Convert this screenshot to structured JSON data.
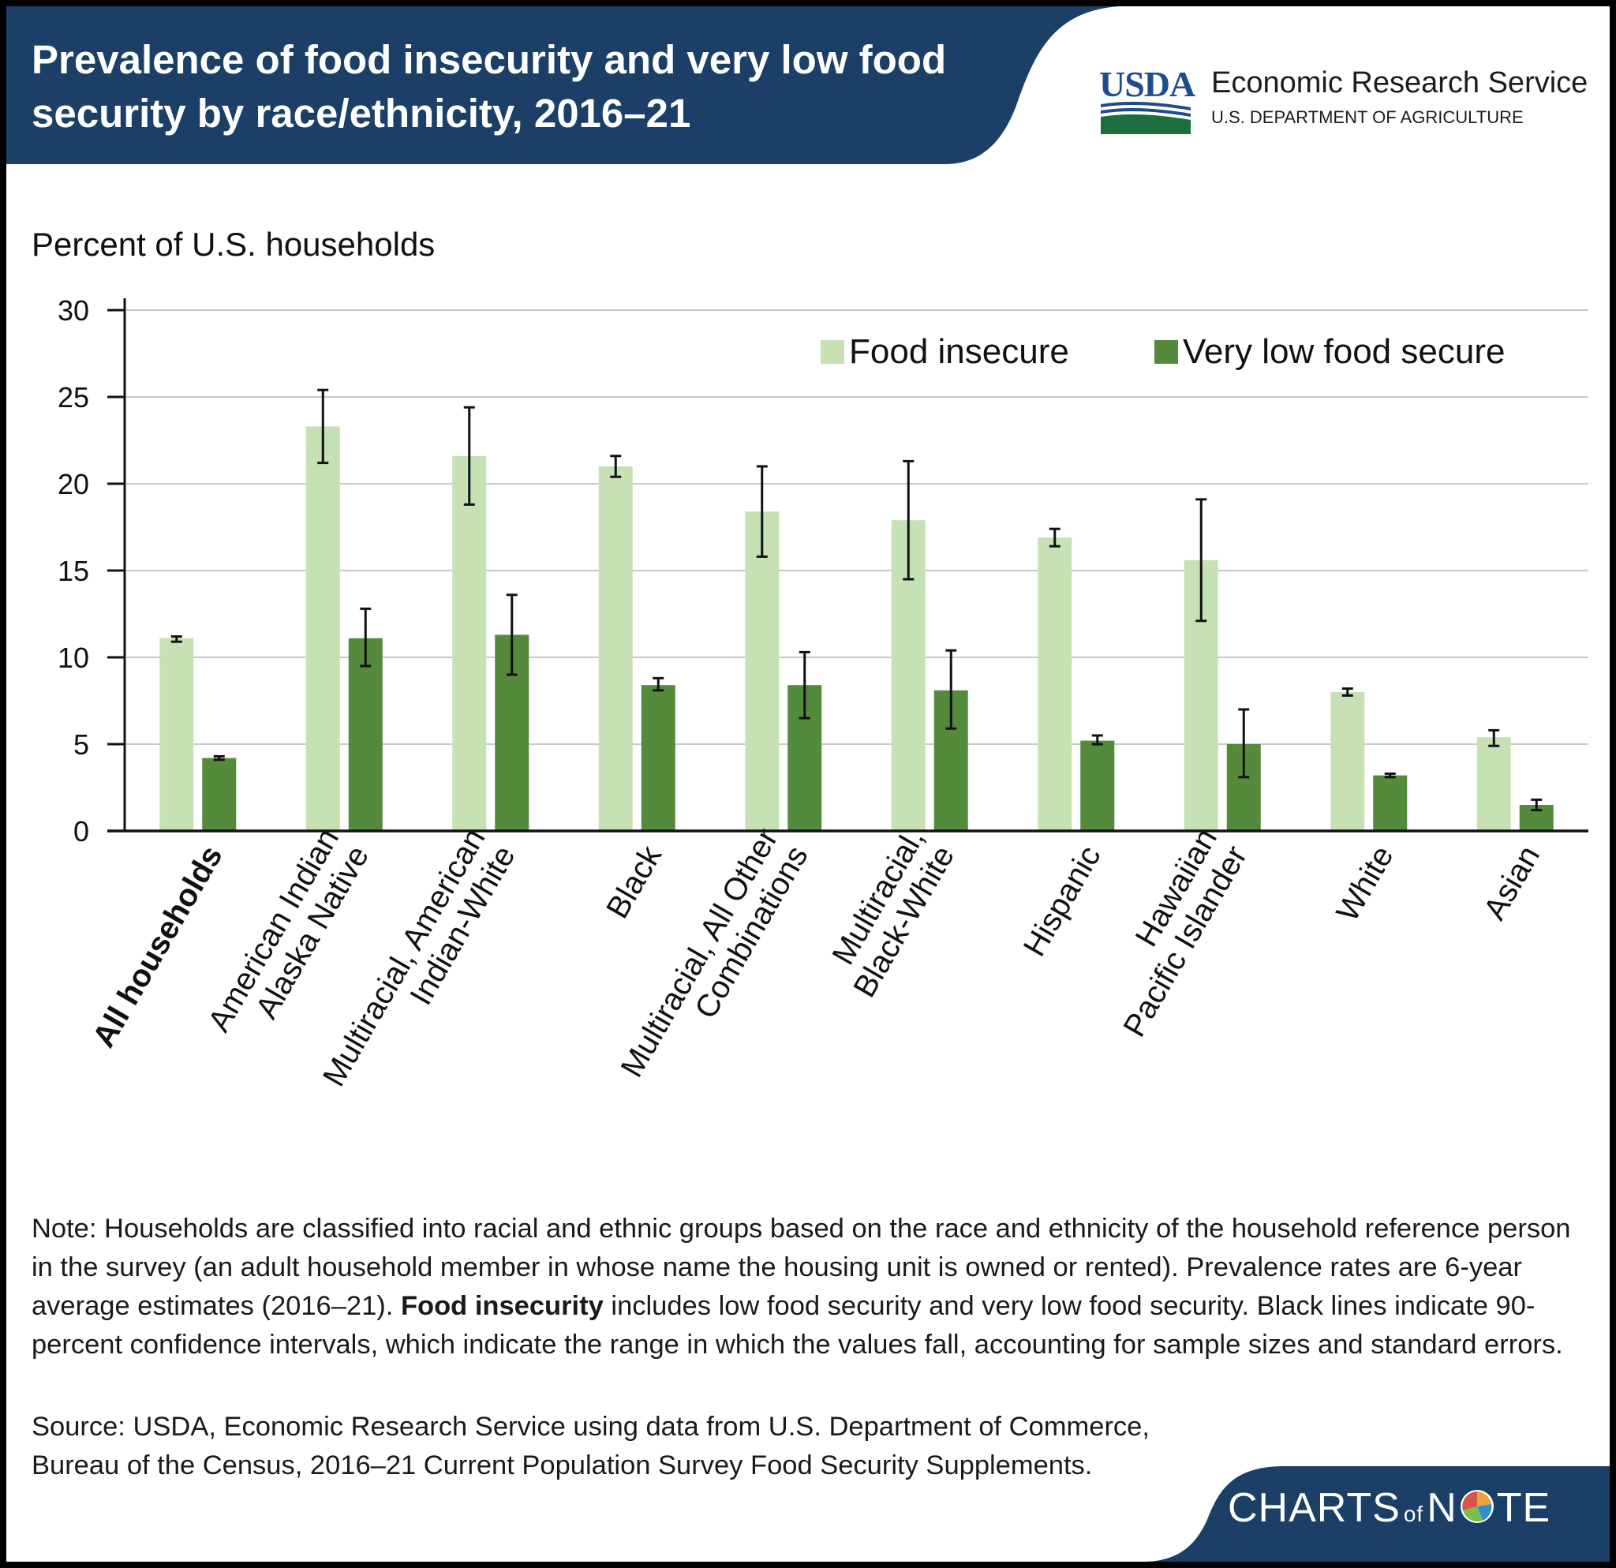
{
  "header": {
    "title": "Prevalence of food insecurity and very low food security by race/ethnicity, 2016–21",
    "logo_usda": "USDA",
    "logo_agency": "Economic Research Service",
    "logo_department": "U.S. DEPARTMENT OF AGRICULTURE"
  },
  "colors": {
    "header_bg": "#1b3f66",
    "food_insecure": "#c6e2b5",
    "very_low": "#548a3c",
    "gridline": "#c8c8c8",
    "usda_blue": "#1e4d8c",
    "usda_green": "#1d6e3f"
  },
  "chart_data": {
    "type": "bar",
    "ylabel": "Percent of U.S. households",
    "ylim": [
      0,
      30
    ],
    "yticks": [
      "0",
      "5",
      "10",
      "15",
      "20",
      "25",
      "30"
    ],
    "categories": [
      "All households",
      "American Indian Alaska Native",
      "Multiracial, American Indian-White",
      "Black",
      "Multiracial, All Other Combinations",
      "Multiracial, Black-White",
      "Hispanic",
      "Hawaiian Pacific Islander",
      "White",
      "Asian"
    ],
    "category_lines": [
      [
        "All households"
      ],
      [
        "American Indian",
        "Alaska Native"
      ],
      [
        "Multiracial, American",
        "Indian-White"
      ],
      [
        "Black"
      ],
      [
        "Multiracial, All Other",
        "Combinations"
      ],
      [
        "Multiracial,",
        "Black-White"
      ],
      [
        "Hispanic"
      ],
      [
        "Hawaiian",
        "Pacific Islander"
      ],
      [
        "White"
      ],
      [
        "Asian"
      ]
    ],
    "bold_categories": [
      "All households"
    ],
    "series": [
      {
        "name": "Food insecure",
        "values": [
          11.1,
          23.3,
          21.6,
          21.0,
          18.4,
          17.9,
          16.9,
          15.6,
          8.0,
          5.4
        ],
        "ci_low": [
          10.9,
          21.2,
          18.8,
          20.4,
          15.8,
          14.5,
          16.4,
          12.1,
          7.8,
          4.9
        ],
        "ci_high": [
          11.2,
          25.4,
          24.4,
          21.6,
          21.0,
          21.3,
          17.4,
          19.1,
          8.2,
          5.8
        ]
      },
      {
        "name": "Very low food secure",
        "values": [
          4.2,
          11.1,
          11.3,
          8.4,
          8.4,
          8.1,
          5.2,
          5.0,
          3.2,
          1.5
        ],
        "ci_low": [
          4.1,
          9.5,
          9.0,
          8.1,
          6.5,
          5.9,
          5.0,
          3.1,
          3.1,
          1.2
        ],
        "ci_high": [
          4.3,
          12.8,
          13.6,
          8.8,
          10.3,
          10.4,
          5.5,
          7.0,
          3.3,
          1.8
        ]
      }
    ]
  },
  "note": {
    "prefix": "Note: Households are classified into racial and ethnic groups based on the race and ethnicity of the household reference person in the survey (an adult household member in whose name the housing unit is owned or rented). Prevalence rates are 6-year average estimates (2016–21). ",
    "bold": "Food insecurity",
    "suffix": " includes low food security and very low food security. Black lines indicate 90-percent confidence intervals, which indicate the range in which the values fall, accounting for sample sizes and standard errors."
  },
  "source": "Source: USDA, Economic Research Service using data from U.S. Department of Commerce, Bureau of the Census, 2016–21 Current Population Survey Food Security Supplements.",
  "footer": {
    "brand_charts": "CHARTS",
    "brand_of": "of",
    "brand_n": "N",
    "brand_te": "TE"
  }
}
